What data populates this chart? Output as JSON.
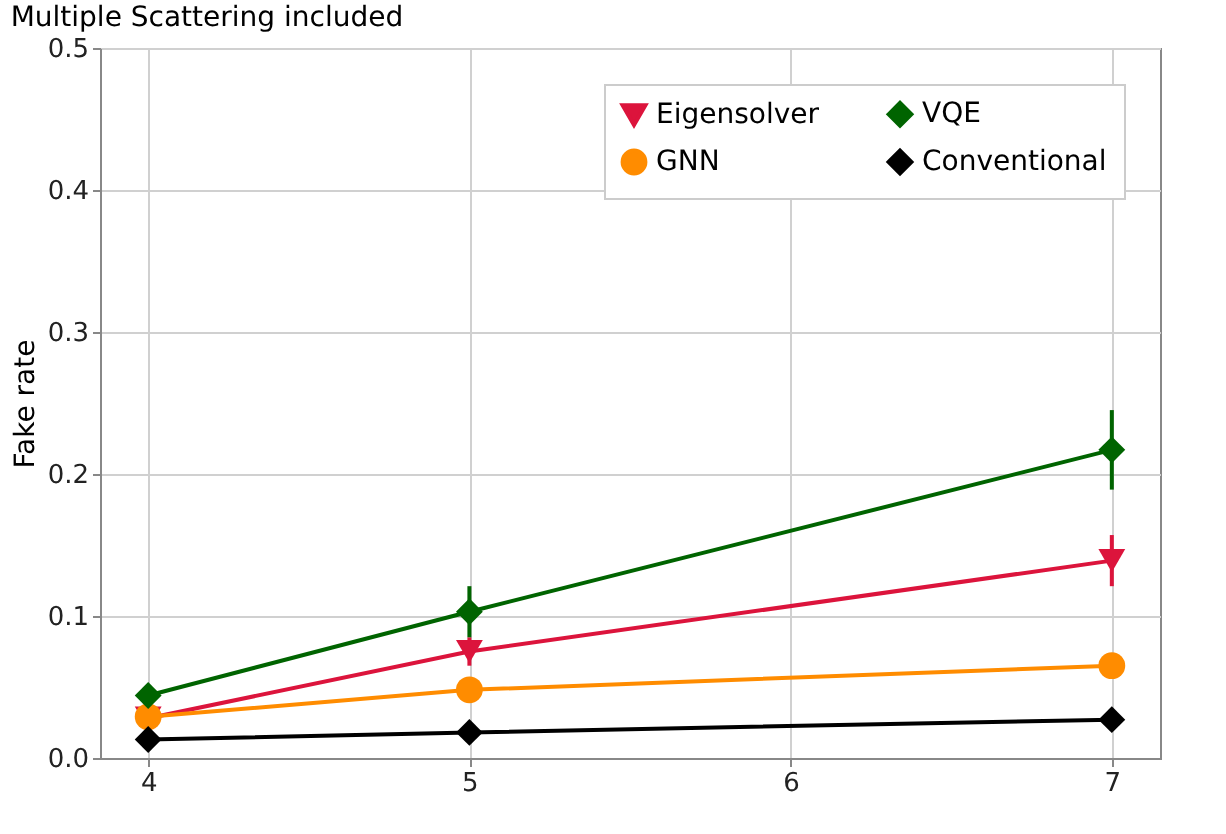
{
  "chart_data": {
    "type": "line",
    "title": "Multiple Scattering included",
    "ylabel": "Fake rate",
    "x": [
      4,
      5,
      7
    ],
    "series": [
      {
        "name": "Eigensolver",
        "color": "#dc143c",
        "marker": "triangle-down",
        "values": [
          0.028,
          0.075,
          0.139
        ],
        "errors": [
          null,
          0.01,
          0.018
        ]
      },
      {
        "name": "GNN",
        "color": "#ff8c00",
        "marker": "circle",
        "values": [
          0.029,
          0.048,
          0.065
        ],
        "errors": [
          null,
          null,
          null
        ]
      },
      {
        "name": "VQE",
        "color": "#006400",
        "marker": "diamond",
        "values": [
          0.044,
          0.103,
          0.217
        ],
        "errors": [
          0.006,
          0.018,
          0.028
        ]
      },
      {
        "name": "Conventional",
        "color": "#000000",
        "marker": "diamond",
        "values": [
          0.013,
          0.018,
          0.027
        ],
        "errors": [
          null,
          null,
          null
        ]
      }
    ],
    "xlim": [
      3.85,
      7.15
    ],
    "xticks": [
      4,
      5,
      6,
      7
    ],
    "ylim": [
      0,
      0.5
    ],
    "yticks": [
      {
        "value": 0,
        "label": "0.0"
      },
      {
        "value": 0.1,
        "label": "0.1"
      },
      {
        "value": 0.2,
        "label": "0.2"
      },
      {
        "value": 0.3,
        "label": "0.3"
      },
      {
        "value": 0.4,
        "label": "0.4"
      },
      {
        "value": 0.5,
        "label": "0.5"
      }
    ],
    "grid": true,
    "legend": "top right"
  }
}
